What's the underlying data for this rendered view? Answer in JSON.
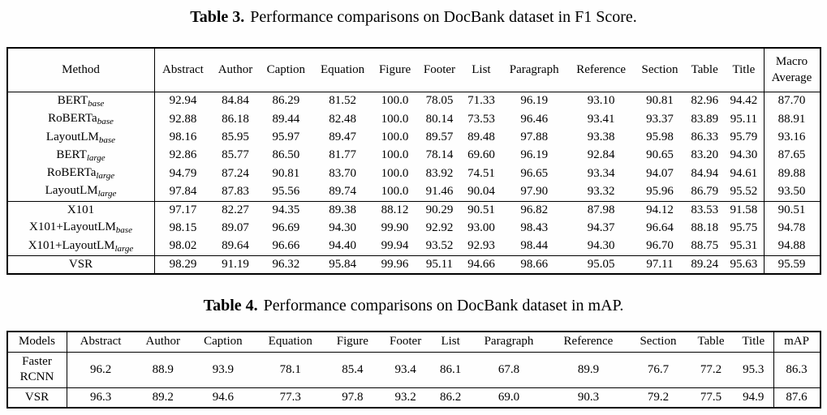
{
  "table3": {
    "caption": {
      "label": "Table 3.",
      "text": "Performance comparisons on DocBank dataset in F1 Score."
    },
    "columns": [
      "Method",
      "Abstract",
      "Author",
      "Caption",
      "Equation",
      "Figure",
      "Footer",
      "List",
      "Paragraph",
      "Reference",
      "Section",
      "Table",
      "Title",
      "Macro\nAverage"
    ],
    "group_sep_after": [
      5,
      8
    ],
    "rows": [
      {
        "method": {
          "name": "BERT",
          "sub": "base"
        },
        "values": [
          "92.94",
          "84.84",
          "86.29",
          "81.52",
          "100.0",
          "78.05",
          "71.33",
          "96.19",
          "93.10",
          "90.81",
          "82.96",
          "94.42",
          "87.70"
        ],
        "bold": []
      },
      {
        "method": {
          "name": "RoBERTa",
          "sub": "base"
        },
        "values": [
          "92.88",
          "86.18",
          "89.44",
          "82.48",
          "100.0",
          "80.14",
          "73.53",
          "96.46",
          "93.41",
          "93.37",
          "83.89",
          "95.11",
          "88.91"
        ],
        "bold": []
      },
      {
        "method": {
          "name": "LayoutLM",
          "sub": "base"
        },
        "values": [
          "98.16",
          "85.95",
          "95.97",
          "89.47",
          "100.0",
          "89.57",
          "89.48",
          "97.88",
          "93.38",
          "95.98",
          "86.33",
          "95.79",
          "93.16"
        ],
        "bold": []
      },
      {
        "method": {
          "name": "BERT",
          "sub": "large"
        },
        "values": [
          "92.86",
          "85.77",
          "86.50",
          "81.77",
          "100.0",
          "78.14",
          "69.60",
          "96.19",
          "92.84",
          "90.65",
          "83.20",
          "94.30",
          "87.65"
        ],
        "bold": []
      },
      {
        "method": {
          "name": "RoBERTa",
          "sub": "large"
        },
        "values": [
          "94.79",
          "87.24",
          "90.81",
          "83.70",
          "100.0",
          "83.92",
          "74.51",
          "96.65",
          "93.34",
          "94.07",
          "84.94",
          "94.61",
          "89.88"
        ],
        "bold": []
      },
      {
        "method": {
          "name": "LayoutLM",
          "sub": "large"
        },
        "values": [
          "97.84",
          "87.83",
          "95.56",
          "89.74",
          "100.0",
          "91.46",
          "90.04",
          "97.90",
          "93.32",
          "95.96",
          "86.79",
          "95.52",
          "93.50"
        ],
        "bold": [
          4
        ]
      },
      {
        "method": {
          "name": "X101"
        },
        "values": [
          "97.17",
          "82.27",
          "94.35",
          "89.38",
          "88.12",
          "90.29",
          "90.51",
          "96.82",
          "87.98",
          "94.12",
          "83.53",
          "91.58",
          "90.51"
        ],
        "bold": []
      },
      {
        "method": {
          "name": "X101+LayoutLM",
          "sub": "base"
        },
        "values": [
          "98.15",
          "89.07",
          "96.69",
          "94.30",
          "99.90",
          "92.92",
          "93.00",
          "98.43",
          "94.37",
          "96.64",
          "88.18",
          "95.75",
          "94.78"
        ],
        "bold": [
          2
        ]
      },
      {
        "method": {
          "name": "X101+LayoutLM",
          "sub": "large"
        },
        "values": [
          "98.02",
          "89.64",
          "96.66",
          "94.40",
          "99.94",
          "93.52",
          "92.93",
          "98.44",
          "94.30",
          "96.70",
          "88.75",
          "95.31",
          "94.88"
        ],
        "bold": []
      },
      {
        "method": {
          "name": "VSR"
        },
        "values": [
          "98.29",
          "91.19",
          "96.32",
          "95.84",
          "99.96",
          "95.11",
          "94.66",
          "98.66",
          "95.05",
          "97.11",
          "89.24",
          "95.63",
          "95.59"
        ],
        "bold": [
          0,
          1,
          3,
          5,
          6,
          7,
          8,
          9,
          10,
          11,
          12
        ]
      }
    ]
  },
  "table4": {
    "caption": {
      "label": "Table 4.",
      "text": "Performance comparisons on DocBank dataset in mAP."
    },
    "columns": [
      "Models",
      "Abstract",
      "Author",
      "Caption",
      "Equation",
      "Figure",
      "Footer",
      "List",
      "Paragraph",
      "Reference",
      "Section",
      "Table",
      "Title",
      "mAP"
    ],
    "group_sep_after": [
      0
    ],
    "rows": [
      {
        "method": {
          "name": "Faster\nRCNN"
        },
        "values": [
          "96.2",
          "88.9",
          "93.9",
          "78.1",
          "85.4",
          "93.4",
          "86.1",
          "67.8",
          "89.9",
          "76.7",
          "77.2",
          "95.3",
          "86.3"
        ],
        "bold": [
          3,
          5,
          11
        ]
      },
      {
        "method": {
          "name": "VSR"
        },
        "values": [
          "96.3",
          "89.2",
          "94.6",
          "77.3",
          "97.8",
          "93.2",
          "86.2",
          "69.0",
          "90.3",
          "79.2",
          "77.5",
          "94.9",
          "87.6"
        ],
        "bold": [
          0,
          1,
          2,
          4,
          6,
          7,
          8,
          9,
          10,
          12
        ]
      }
    ]
  }
}
